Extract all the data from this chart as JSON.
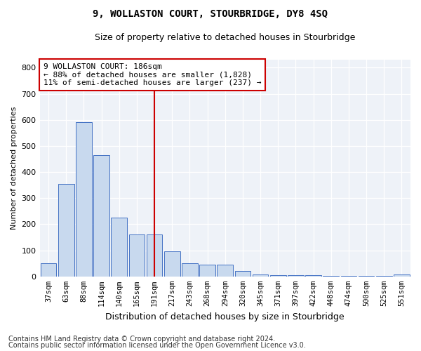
{
  "title": "9, WOLLASTON COURT, STOURBRIDGE, DY8 4SQ",
  "subtitle": "Size of property relative to detached houses in Stourbridge",
  "xlabel": "Distribution of detached houses by size in Stourbridge",
  "ylabel": "Number of detached properties",
  "categories": [
    "37sqm",
    "63sqm",
    "88sqm",
    "114sqm",
    "140sqm",
    "165sqm",
    "191sqm",
    "217sqm",
    "243sqm",
    "268sqm",
    "294sqm",
    "320sqm",
    "345sqm",
    "371sqm",
    "397sqm",
    "422sqm",
    "448sqm",
    "474sqm",
    "500sqm",
    "525sqm",
    "551sqm"
  ],
  "values": [
    50,
    355,
    590,
    465,
    225,
    160,
    160,
    95,
    50,
    45,
    45,
    20,
    8,
    6,
    5,
    4,
    3,
    2,
    2,
    1,
    8
  ],
  "bar_color": "#c8d9ee",
  "bar_edge_color": "#4472c4",
  "red_line_index": 6,
  "red_line_color": "#cc0000",
  "annotation_text": "9 WOLLASTON COURT: 186sqm\n← 88% of detached houses are smaller (1,828)\n11% of semi-detached houses are larger (237) →",
  "annotation_box_color": "#ffffff",
  "annotation_box_edge": "#cc0000",
  "ylim": [
    0,
    830
  ],
  "yticks": [
    0,
    100,
    200,
    300,
    400,
    500,
    600,
    700,
    800
  ],
  "bg_color": "#eef2f8",
  "footer1": "Contains HM Land Registry data © Crown copyright and database right 2024.",
  "footer2": "Contains public sector information licensed under the Open Government Licence v3.0."
}
